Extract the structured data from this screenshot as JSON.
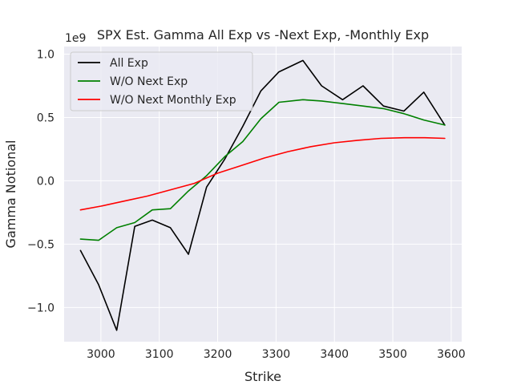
{
  "chart_data": {
    "type": "line",
    "title": "SPX Est. Gamma All Exp vs -Next Exp, -Monthly Exp",
    "xlabel": "Strike",
    "ylabel": "Gamma Notional",
    "y_offset_text": "1e9",
    "xlim": [
      2937,
      3618
    ],
    "ylim": [
      -1.27,
      1.06
    ],
    "x_ticks": [
      3000,
      3100,
      3200,
      3300,
      3400,
      3500,
      3600
    ],
    "x_tick_labels": [
      "3000",
      "3100",
      "3200",
      "3300",
      "3400",
      "3500",
      "3600"
    ],
    "y_ticks": [
      -1.0,
      -0.5,
      0.0,
      0.5,
      1.0
    ],
    "y_tick_labels": [
      "−1.0",
      "−0.5",
      "0.0",
      "0.5",
      "1.0"
    ],
    "grid": true,
    "legend_position": "upper-left",
    "series": [
      {
        "name": "All Exp",
        "color": "#000000",
        "x": [
          2965,
          2996,
          3027,
          3058,
          3088,
          3119,
          3150,
          3181,
          3212,
          3243,
          3274,
          3305,
          3346,
          3378,
          3414,
          3449,
          3484,
          3519,
          3553,
          3589
        ],
        "y": [
          -0.55,
          -0.82,
          -1.18,
          -0.36,
          -0.31,
          -0.37,
          -0.58,
          -0.05,
          0.17,
          0.43,
          0.71,
          0.86,
          0.95,
          0.75,
          0.64,
          0.75,
          0.59,
          0.55,
          0.7,
          0.44
        ]
      },
      {
        "name": "W/O Next Exp",
        "color": "#008000",
        "x": [
          2965,
          2996,
          3027,
          3058,
          3088,
          3119,
          3150,
          3181,
          3212,
          3243,
          3274,
          3305,
          3346,
          3378,
          3414,
          3449,
          3484,
          3519,
          3553,
          3589
        ],
        "y": [
          -0.46,
          -0.47,
          -0.37,
          -0.33,
          -0.23,
          -0.22,
          -0.08,
          0.04,
          0.19,
          0.31,
          0.49,
          0.62,
          0.64,
          0.63,
          0.61,
          0.59,
          0.57,
          0.53,
          0.48,
          0.44
        ]
      },
      {
        "name": "W/O Next Monthly Exp",
        "color": "#ff0000",
        "x": [
          2965,
          3000,
          3040,
          3080,
          3120,
          3160,
          3200,
          3240,
          3280,
          3320,
          3360,
          3400,
          3440,
          3480,
          3520,
          3555,
          3589
        ],
        "y": [
          -0.23,
          -0.2,
          -0.16,
          -0.12,
          -0.07,
          -0.02,
          0.06,
          0.12,
          0.18,
          0.23,
          0.27,
          0.3,
          0.32,
          0.335,
          0.34,
          0.34,
          0.335
        ]
      }
    ]
  }
}
